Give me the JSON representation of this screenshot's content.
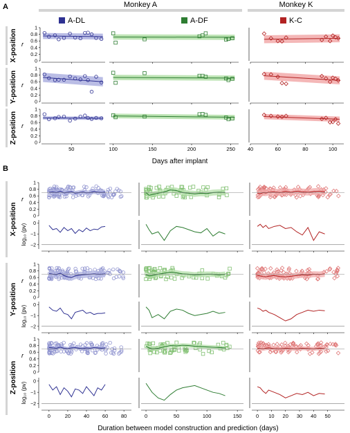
{
  "figure": {
    "panels": [
      "A",
      "B"
    ],
    "monkeys": [
      "Monkey A",
      "Monkey K"
    ],
    "legend": [
      {
        "label": "A-DL",
        "color": "#2e3192"
      },
      {
        "label": "A-DF",
        "color": "#2e7d32"
      },
      {
        "label": "K-C",
        "color": "#b22222"
      }
    ],
    "colors": {
      "A-DL": "#2e3192",
      "A-DF": "#2e7d32",
      "K-C": "#b22222",
      "A-DL_fill": "#aeb2e0",
      "A-DF_fill": "#b3dfa8",
      "K-C_fill": "#f2aaaa"
    },
    "rows": [
      "X-position",
      "Y-position",
      "Z-position"
    ],
    "y_label_r": "r",
    "y_label_log": "log₁₀ (pv)",
    "xlabel_A": "Days after implant",
    "xlabel_B": "Duration between model construction and prediction (days)"
  },
  "chart_data": [
    {
      "type": "scatter",
      "panel": "A",
      "xlabel": "Days after implant",
      "ylabel": "r",
      "ylim": [
        0,
        1
      ],
      "yticks": [
        0,
        0.2,
        0.4,
        0.6,
        0.8,
        1
      ],
      "markers": {
        "A-DL": "circle",
        "A-DF": "square",
        "K-C": "diamond"
      },
      "subplots": {
        "A-DL": {
          "xlim": [
            10,
            95
          ],
          "xticks": [
            50
          ]
        },
        "A-DF": {
          "xlim": [
            95,
            260
          ],
          "xticks": [
            100,
            150,
            200,
            250
          ]
        },
        "K-C": {
          "xlim": [
            40,
            108
          ],
          "xticks": [
            40,
            60,
            80,
            100
          ]
        }
      },
      "series": {
        "X-position": {
          "A-DL": {
            "x": [
              14,
              20,
              28,
              33,
              40,
              48,
              55,
              62,
              68,
              72,
              77,
              83,
              90
            ],
            "y": [
              0.84,
              0.73,
              0.77,
              0.65,
              0.69,
              0.82,
              0.7,
              0.68,
              0.84,
              0.85,
              0.8,
              0.69,
              0.66
            ],
            "fit": [
              [
                12,
                0.75
              ],
              [
                92,
                0.73
              ]
            ],
            "band": 0.09
          },
          "A-DF": {
            "x": [
              100,
              103,
              140,
              210,
              214,
              218,
              244,
              247,
              252
            ],
            "y": [
              0.83,
              0.55,
              0.65,
              0.74,
              0.77,
              0.83,
              0.64,
              0.66,
              0.68
            ],
            "fit": [
              [
                100,
                0.72
              ],
              [
                255,
                0.71
              ]
            ],
            "band": 0.08
          },
          "K-C": {
            "x": [
              50,
              55,
              60,
              63,
              66,
              92,
              95,
              98,
              100,
              102,
              104
            ],
            "y": [
              0.82,
              0.68,
              0.6,
              0.59,
              0.7,
              0.63,
              0.73,
              0.6,
              0.76,
              0.71,
              0.68
            ],
            "fit": [
              [
                50,
                0.65
              ],
              [
                105,
                0.68
              ]
            ],
            "band": 0.12
          }
        },
        "Y-position": {
          "A-DL": {
            "x": [
              14,
              20,
              28,
              33,
              40,
              48,
              55,
              62,
              68,
              72,
              77,
              83,
              90
            ],
            "y": [
              0.82,
              0.71,
              0.65,
              0.66,
              0.66,
              0.76,
              0.7,
              0.67,
              0.77,
              0.65,
              0.3,
              0.75,
              0.58
            ],
            "fit": [
              [
                12,
                0.73
              ],
              [
                92,
                0.6
              ]
            ],
            "band": 0.14
          },
          "A-DF": {
            "x": [
              100,
              103,
              140,
              210,
              214,
              218,
              244,
              247,
              252
            ],
            "y": [
              0.87,
              0.57,
              0.86,
              0.78,
              0.78,
              0.75,
              0.7,
              0.65,
              0.69
            ],
            "fit": [
              [
                100,
                0.73
              ],
              [
                255,
                0.71
              ]
            ],
            "band": 0.08
          },
          "K-C": {
            "x": [
              50,
              55,
              60,
              63,
              66,
              92,
              95,
              98,
              100,
              102,
              104
            ],
            "y": [
              0.83,
              0.82,
              0.75,
              0.56,
              0.54,
              0.77,
              0.7,
              0.6,
              0.72,
              0.69,
              0.64
            ],
            "fit": [
              [
                50,
                0.78
              ],
              [
                105,
                0.64
              ]
            ],
            "band": 0.12
          }
        },
        "Z-position": {
          "A-DL": {
            "x": [
              14,
              20,
              28,
              33,
              40,
              48,
              55,
              62,
              68,
              72,
              77,
              83,
              90
            ],
            "y": [
              0.85,
              0.7,
              0.73,
              0.77,
              0.78,
              0.66,
              0.72,
              0.78,
              0.81,
              0.74,
              0.71,
              0.74,
              0.73
            ],
            "fit": [
              [
                12,
                0.74
              ],
              [
                92,
                0.73
              ]
            ],
            "band": 0.05
          },
          "A-DF": {
            "x": [
              100,
              103,
              140,
              210,
              214,
              218,
              244,
              247,
              252
            ],
            "y": [
              0.82,
              0.76,
              0.78,
              0.85,
              0.86,
              0.83,
              0.75,
              0.7,
              0.72
            ],
            "fit": [
              [
                100,
                0.8
              ],
              [
                255,
                0.76
              ]
            ],
            "band": 0.07
          },
          "K-C": {
            "x": [
              50,
              55,
              60,
              63,
              66,
              92,
              95,
              98,
              100,
              102,
              104
            ],
            "y": [
              0.83,
              0.8,
              0.78,
              0.77,
              0.8,
              0.71,
              0.74,
              0.61,
              0.62,
              0.7,
              0.57
            ],
            "fit": [
              [
                50,
                0.78
              ],
              [
                105,
                0.7
              ]
            ],
            "band": 0.08
          }
        }
      }
    },
    {
      "type": "line",
      "panel": "B",
      "xlabel": "Duration between model construction and prediction (days)",
      "ylabel_top": "r",
      "ylabel_bottom": "log₁₀ (pv)",
      "ylim_top": [
        0,
        1
      ],
      "yticks_top": [
        0,
        0.2,
        0.4,
        0.6,
        0.8,
        1
      ],
      "ylim_bottom": [
        -2.4,
        0.3
      ],
      "yticks_bottom": [
        0,
        -1,
        -2
      ],
      "reference_r": 0.7,
      "significance_log10": -2,
      "subplots": {
        "A-DL": {
          "xlim": [
            -8,
            88
          ],
          "xticks": [
            0,
            20,
            40,
            60,
            80
          ]
        },
        "A-DF": {
          "xlim": [
            -8,
            160
          ],
          "xticks": [
            0,
            50,
            100,
            150
          ]
        },
        "K-C": {
          "xlim": [
            -4,
            62
          ],
          "xticks": [
            0,
            10,
            20,
            30,
            40,
            50
          ]
        }
      },
      "series": {
        "X-position": {
          "A-DL": {
            "x": [
              0,
              4,
              8,
              12,
              16,
              20,
              24,
              28,
              32,
              36,
              40,
              44,
              48,
              52,
              56,
              60
            ],
            "r": [
              0.71,
              0.72,
              0.7,
              0.74,
              0.69,
              0.71,
              0.73,
              0.68,
              0.7,
              0.72,
              0.69,
              0.7,
              0.73,
              0.71,
              0.7,
              0.72
            ],
            "pv": [
              -0.2,
              -0.6,
              -0.5,
              -0.85,
              -0.4,
              -0.7,
              -0.5,
              -0.95,
              -0.6,
              -0.8,
              -0.45,
              -0.7,
              -0.55,
              -0.6,
              -0.35,
              -0.3
            ],
            "band": 0.07
          },
          "A-DF": {
            "x": [
              0,
              5,
              10,
              20,
              30,
              40,
              50,
              60,
              70,
              80,
              90,
              100,
              110,
              120,
              130
            ],
            "r": [
              0.7,
              0.62,
              0.64,
              0.68,
              0.72,
              0.78,
              0.76,
              0.7,
              0.68,
              0.66,
              0.68,
              0.67,
              0.7,
              0.71,
              0.7
            ],
            "pv": [
              -0.1,
              -0.6,
              -1.0,
              -0.8,
              -1.6,
              -0.7,
              -0.3,
              -0.4,
              -0.6,
              -0.8,
              -0.9,
              -0.5,
              -1.2,
              -0.8,
              -1.0
            ],
            "band": 0.09
          },
          "K-C": {
            "x": [
              0,
              2,
              4,
              6,
              8,
              12,
              16,
              20,
              24,
              28,
              32,
              36,
              40,
              44,
              48
            ],
            "r": [
              0.68,
              0.66,
              0.7,
              0.69,
              0.71,
              0.72,
              0.7,
              0.73,
              0.71,
              0.74,
              0.72,
              0.71,
              0.73,
              0.74,
              0.72
            ],
            "pv": [
              -0.3,
              -0.1,
              -0.4,
              -0.2,
              -0.5,
              -0.3,
              -0.2,
              -0.5,
              -0.4,
              -0.8,
              -1.1,
              -0.4,
              -1.6,
              -0.8,
              -1.0
            ],
            "band": 0.1
          }
        },
        "Y-position": {
          "A-DL": {
            "x": [
              0,
              4,
              8,
              12,
              16,
              20,
              24,
              28,
              32,
              36,
              40,
              44,
              48,
              52,
              56,
              60
            ],
            "r": [
              0.72,
              0.7,
              0.69,
              0.73,
              0.66,
              0.62,
              0.6,
              0.65,
              0.67,
              0.68,
              0.69,
              0.7,
              0.71,
              0.7,
              0.7,
              0.71
            ],
            "pv": [
              -0.2,
              -0.5,
              -0.6,
              -0.3,
              -0.8,
              -0.9,
              -1.3,
              -0.7,
              -0.6,
              -0.5,
              -0.8,
              -0.7,
              -0.9,
              -0.8,
              -0.8,
              -0.75
            ],
            "band": 0.1
          },
          "A-DF": {
            "x": [
              0,
              5,
              10,
              20,
              30,
              40,
              50,
              60,
              70,
              80,
              90,
              100,
              110,
              120,
              130
            ],
            "r": [
              0.68,
              0.65,
              0.66,
              0.7,
              0.73,
              0.76,
              0.74,
              0.71,
              0.7,
              0.68,
              0.69,
              0.7,
              0.7,
              0.68,
              0.7
            ],
            "pv": [
              -0.2,
              -0.5,
              -1.2,
              -0.9,
              -1.3,
              -0.6,
              -0.4,
              -0.5,
              -0.8,
              -1.0,
              -0.9,
              -0.8,
              -0.6,
              -0.8,
              -0.7
            ],
            "band": 0.08
          },
          "K-C": {
            "x": [
              0,
              2,
              4,
              6,
              8,
              12,
              16,
              20,
              24,
              28,
              32,
              36,
              40,
              44,
              48
            ],
            "r": [
              0.66,
              0.65,
              0.63,
              0.62,
              0.64,
              0.66,
              0.63,
              0.62,
              0.64,
              0.66,
              0.68,
              0.67,
              0.7,
              0.69,
              0.71
            ],
            "pv": [
              -0.3,
              -0.4,
              -0.6,
              -0.5,
              -0.7,
              -0.9,
              -1.2,
              -1.5,
              -1.3,
              -0.9,
              -0.7,
              -0.5,
              -0.6,
              -0.5,
              -0.55
            ],
            "band": 0.09
          }
        },
        "Z-position": {
          "A-DL": {
            "x": [
              0,
              4,
              8,
              12,
              16,
              20,
              24,
              28,
              32,
              36,
              40,
              44,
              48,
              52,
              56,
              60
            ],
            "r": [
              0.74,
              0.73,
              0.72,
              0.75,
              0.72,
              0.71,
              0.73,
              0.74,
              0.72,
              0.71,
              0.73,
              0.72,
              0.74,
              0.73,
              0.72,
              0.73
            ],
            "pv": [
              -0.3,
              -0.8,
              -0.5,
              -1.2,
              -0.6,
              -0.9,
              -1.4,
              -0.7,
              -0.8,
              -1.1,
              -0.5,
              -0.9,
              -1.3,
              -0.6,
              -0.8,
              -0.3
            ],
            "band": 0.05
          },
          "A-DF": {
            "x": [
              0,
              5,
              10,
              20,
              30,
              40,
              50,
              60,
              70,
              80,
              90,
              100,
              110,
              120,
              130
            ],
            "r": [
              0.78,
              0.73,
              0.7,
              0.72,
              0.76,
              0.8,
              0.79,
              0.81,
              0.8,
              0.78,
              0.77,
              0.76,
              0.75,
              0.74,
              0.73
            ],
            "pv": [
              -0.2,
              -0.6,
              -1.0,
              -1.5,
              -1.7,
              -1.2,
              -0.8,
              -0.6,
              -0.5,
              -0.4,
              -0.6,
              -0.8,
              -1.0,
              -1.1,
              -1.3
            ],
            "band": 0.06
          },
          "K-C": {
            "x": [
              0,
              2,
              4,
              6,
              8,
              12,
              16,
              20,
              24,
              28,
              32,
              36,
              40,
              44,
              48
            ],
            "r": [
              0.72,
              0.71,
              0.7,
              0.72,
              0.73,
              0.71,
              0.7,
              0.72,
              0.71,
              0.7,
              0.72,
              0.71,
              0.7,
              0.72,
              0.71
            ],
            "pv": [
              -0.5,
              -0.6,
              -0.9,
              -1.1,
              -0.8,
              -1.0,
              -1.2,
              -1.5,
              -1.3,
              -1.1,
              -1.2,
              -1.0,
              -1.3,
              -1.1,
              -1.15
            ],
            "band": 0.06
          }
        }
      }
    }
  ]
}
